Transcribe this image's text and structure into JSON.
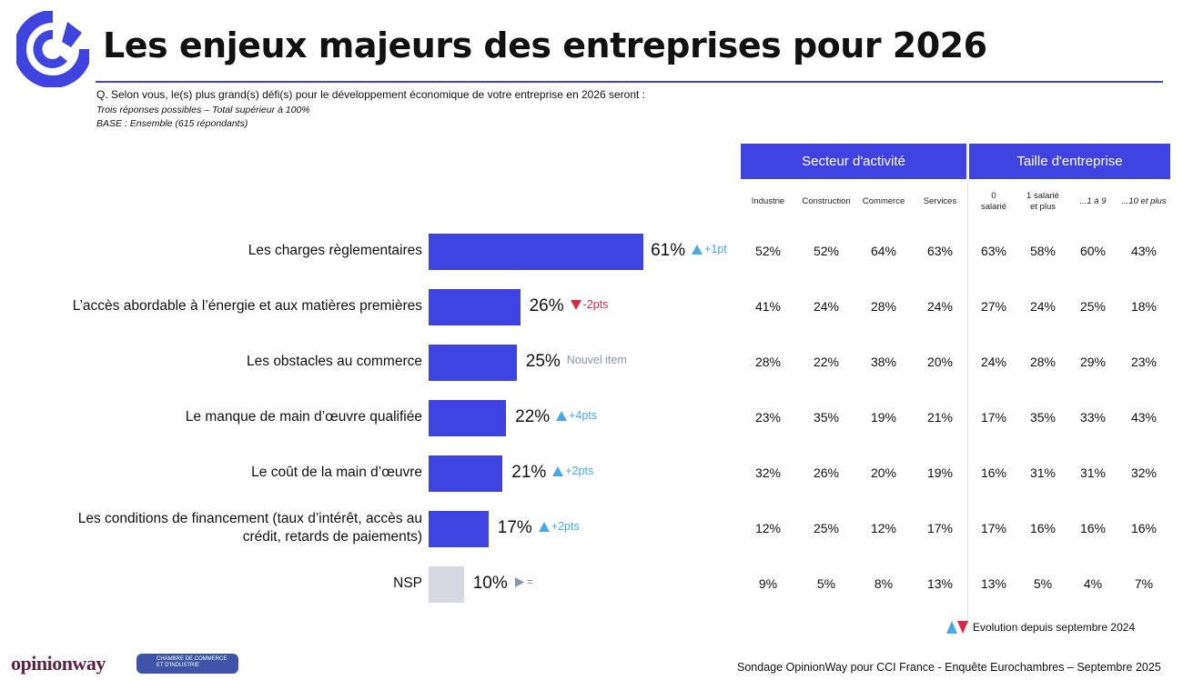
{
  "header": {
    "title": "Les enjeux majeurs des entreprises pour 2026",
    "question": "Q. Selon vous, le(s) plus grand(s) défi(s) pour le développement économique de votre entreprise en 2026 seront :",
    "note": "Trois réponses possibles – Total supérieur à 100%",
    "base": "BASE : Ensemble (615 répondants)"
  },
  "colors": {
    "accent": "#3f44e0",
    "up": "#4aa8e6",
    "down": "#d8294a",
    "neutral": "#8a94ad",
    "nsp_bar": "#d6d9e2"
  },
  "chart_data": {
    "type": "bar",
    "orientation": "horizontal",
    "xlim": [
      0,
      100
    ],
    "categories": [
      "Les charges règlementaires",
      "L’accès abordable à l’énergie et aux matières premières",
      "Les obstacles au commerce",
      "Le manque de main d’œuvre qualifiée",
      "Le coût de la main d’œuvre",
      "Les conditions de financement (taux d’intérêt, accès au crédit, retards de paiements)",
      "NSP"
    ],
    "values": [
      61,
      26,
      25,
      22,
      21,
      17,
      10
    ],
    "value_labels": [
      "61%",
      "26%",
      "25%",
      "22%",
      "21%",
      "17%",
      "10%"
    ],
    "evolution": [
      {
        "dir": "up",
        "text": "+1pt"
      },
      {
        "dir": "down",
        "text": "-2pts"
      },
      {
        "dir": "none",
        "text": "Nouvel item"
      },
      {
        "dir": "up",
        "text": "+4pts"
      },
      {
        "dir": "up",
        "text": "+2pts"
      },
      {
        "dir": "up",
        "text": "+2pts"
      },
      {
        "dir": "equal",
        "text": "="
      }
    ]
  },
  "table": {
    "groups": [
      {
        "label": "Secteur d'activité"
      },
      {
        "label": "Taille d'entreprise"
      }
    ],
    "columns": [
      "Industrie",
      "Construction",
      "Commerce",
      "Services",
      "0\nsalarié",
      "1 salarié\net plus",
      "...1 à 9",
      "...10 et plus"
    ],
    "rows": [
      [
        "52%",
        "52%",
        "64%",
        "63%",
        "63%",
        "58%",
        "60%",
        "43%"
      ],
      [
        "41%",
        "24%",
        "28%",
        "24%",
        "27%",
        "24%",
        "25%",
        "18%"
      ],
      [
        "28%",
        "22%",
        "38%",
        "20%",
        "24%",
        "28%",
        "29%",
        "23%"
      ],
      [
        "23%",
        "35%",
        "19%",
        "21%",
        "17%",
        "35%",
        "33%",
        "43%"
      ],
      [
        "32%",
        "26%",
        "20%",
        "19%",
        "16%",
        "31%",
        "31%",
        "32%"
      ],
      [
        "12%",
        "25%",
        "12%",
        "17%",
        "17%",
        "16%",
        "16%",
        "16%"
      ],
      [
        "9%",
        "5%",
        "8%",
        "13%",
        "13%",
        "5%",
        "4%",
        "7%"
      ]
    ]
  },
  "legend": {
    "text": "Evolution depuis septembre 2024"
  },
  "footer": {
    "source": "Sondage OpinionWay pour CCI France - Enquête Eurochambres – Septembre 2025",
    "logo_opinionway": "opinionway",
    "logo_cci": "CHAMBRE DE COMMERCE ET D'INDUSTRIE"
  }
}
